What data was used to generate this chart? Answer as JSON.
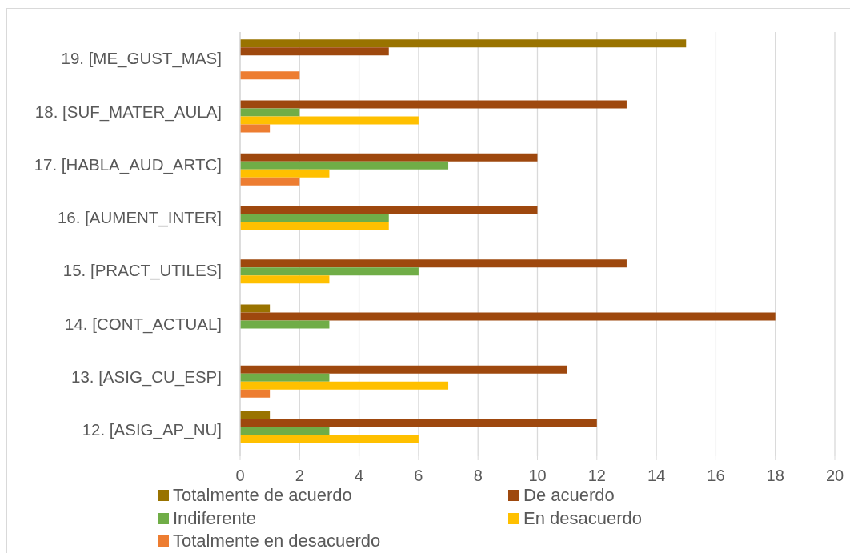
{
  "chart_data": {
    "type": "bar",
    "orientation": "horizontal",
    "categories": [
      "19. [ME_GUST_MAS]",
      "18. [SUF_MATER_AULA]",
      "17. [HABLA_AUD_ARTC]",
      "16. [AUMENT_INTER]",
      "15. [PRACT_UTILES]",
      "14. [CONT_ACTUAL]",
      "13. [ASIG_CU_ESP]",
      "12. [ASIG_AP_NU]"
    ],
    "series": [
      {
        "name": "Totalmente de acuerdo",
        "color": "#997300",
        "values": [
          15,
          null,
          null,
          null,
          null,
          1,
          null,
          1
        ]
      },
      {
        "name": "De acuerdo",
        "color": "#9e480e",
        "values": [
          5,
          13,
          10,
          10,
          13,
          18,
          11,
          12
        ]
      },
      {
        "name": "Indiferente",
        "color": "#70ad47",
        "values": [
          null,
          2,
          7,
          5,
          6,
          3,
          3,
          3
        ]
      },
      {
        "name": "En desacuerdo",
        "color": "#ffc000",
        "values": [
          null,
          6,
          3,
          5,
          3,
          null,
          7,
          6
        ]
      },
      {
        "name": "Totalmente en desacuerdo",
        "color": "#ed7d31",
        "values": [
          2,
          1,
          2,
          null,
          null,
          null,
          1,
          null
        ]
      }
    ],
    "xlim": [
      0,
      20
    ],
    "xticks": [
      0,
      2,
      4,
      6,
      8,
      10,
      12,
      14,
      16,
      18,
      20
    ],
    "grid": "x",
    "legend": "bottom"
  }
}
